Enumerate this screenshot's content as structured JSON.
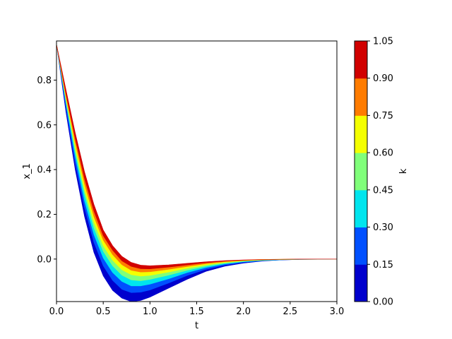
{
  "chart_data": {
    "type": "area",
    "xlabel": "t",
    "ylabel": "x_1",
    "xlim": [
      0,
      3
    ],
    "ylim": [
      -0.19,
      0.975
    ],
    "xticks": [
      0,
      0.5,
      1,
      1.5,
      2,
      2.5,
      3
    ],
    "xtick_labels": [
      "0.0",
      "0.5",
      "1.0",
      "1.5",
      "2.0",
      "2.5",
      "3.0"
    ],
    "yticks": [
      0,
      0.2,
      0.4,
      0.6,
      0.8
    ],
    "ytick_labels": [
      "0.0",
      "0.2",
      "0.4",
      "0.6",
      "0.8"
    ],
    "x": [
      0,
      0.1,
      0.2,
      0.3,
      0.4,
      0.5,
      0.6,
      0.7,
      0.8,
      0.9,
      1.0,
      1.2,
      1.4,
      1.6,
      1.8,
      2.0,
      2.2,
      2.4,
      2.6,
      2.8,
      3.0
    ],
    "series": [
      {
        "values": [
          0.96,
          0.66,
          0.4,
          0.19,
          0.03,
          -0.075,
          -0.14,
          -0.175,
          -0.19,
          -0.185,
          -0.17,
          -0.13,
          -0.09,
          -0.055,
          -0.032,
          -0.018,
          -0.009,
          -0.004,
          -0.002,
          -0.001,
          0.0
        ]
      },
      {
        "values": [
          0.96,
          0.68,
          0.43,
          0.23,
          0.075,
          -0.03,
          -0.095,
          -0.135,
          -0.15,
          -0.148,
          -0.138,
          -0.107,
          -0.073,
          -0.046,
          -0.027,
          -0.015,
          -0.008,
          -0.004,
          -0.002,
          -0.001,
          0.0
        ]
      },
      {
        "values": [
          0.96,
          0.7,
          0.46,
          0.26,
          0.11,
          0.005,
          -0.06,
          -0.1,
          -0.12,
          -0.12,
          -0.112,
          -0.088,
          -0.06,
          -0.038,
          -0.022,
          -0.012,
          -0.006,
          -0.003,
          -0.001,
          0.0,
          0.0
        ]
      },
      {
        "values": [
          0.96,
          0.71,
          0.48,
          0.29,
          0.14,
          0.035,
          -0.03,
          -0.072,
          -0.093,
          -0.097,
          -0.091,
          -0.072,
          -0.05,
          -0.032,
          -0.019,
          -0.01,
          -0.005,
          -0.002,
          -0.001,
          0.0,
          0.0
        ]
      },
      {
        "values": [
          0.96,
          0.72,
          0.5,
          0.31,
          0.165,
          0.06,
          -0.005,
          -0.048,
          -0.07,
          -0.076,
          -0.073,
          -0.058,
          -0.041,
          -0.026,
          -0.015,
          -0.008,
          -0.004,
          -0.002,
          -0.001,
          0.0,
          0.0
        ]
      },
      {
        "values": [
          0.96,
          0.73,
          0.52,
          0.335,
          0.19,
          0.085,
          0.02,
          -0.025,
          -0.05,
          -0.058,
          -0.057,
          -0.046,
          -0.033,
          -0.021,
          -0.012,
          -0.006,
          -0.003,
          -0.001,
          0.0,
          0.0,
          0.0
        ]
      },
      {
        "values": [
          0.96,
          0.74,
          0.54,
          0.36,
          0.215,
          0.105,
          0.04,
          -0.008,
          -0.033,
          -0.043,
          -0.044,
          -0.036,
          -0.026,
          -0.016,
          -0.009,
          -0.005,
          -0.002,
          -0.001,
          0.0,
          0.0,
          0.0
        ]
      },
      {
        "values": [
          0.96,
          0.76,
          0.565,
          0.39,
          0.245,
          0.13,
          0.06,
          0.012,
          -0.015,
          -0.027,
          -0.03,
          -0.026,
          -0.019,
          -0.012,
          -0.007,
          -0.004,
          -0.002,
          -0.001,
          0.0,
          0.0,
          0.0
        ]
      }
    ],
    "band_colors": [
      "#0000cd",
      "#0050ff",
      "#00e5ee",
      "#80ff7a",
      "#f4ff00",
      "#ff7c00",
      "#d10000"
    ],
    "colorbar": {
      "label": "k",
      "levels": [
        0.0,
        0.15,
        0.3,
        0.45,
        0.6,
        0.75,
        0.9,
        1.05
      ],
      "tick_labels": [
        "0.00",
        "0.15",
        "0.30",
        "0.45",
        "0.60",
        "0.75",
        "0.90",
        "1.05"
      ]
    },
    "grid": false
  }
}
